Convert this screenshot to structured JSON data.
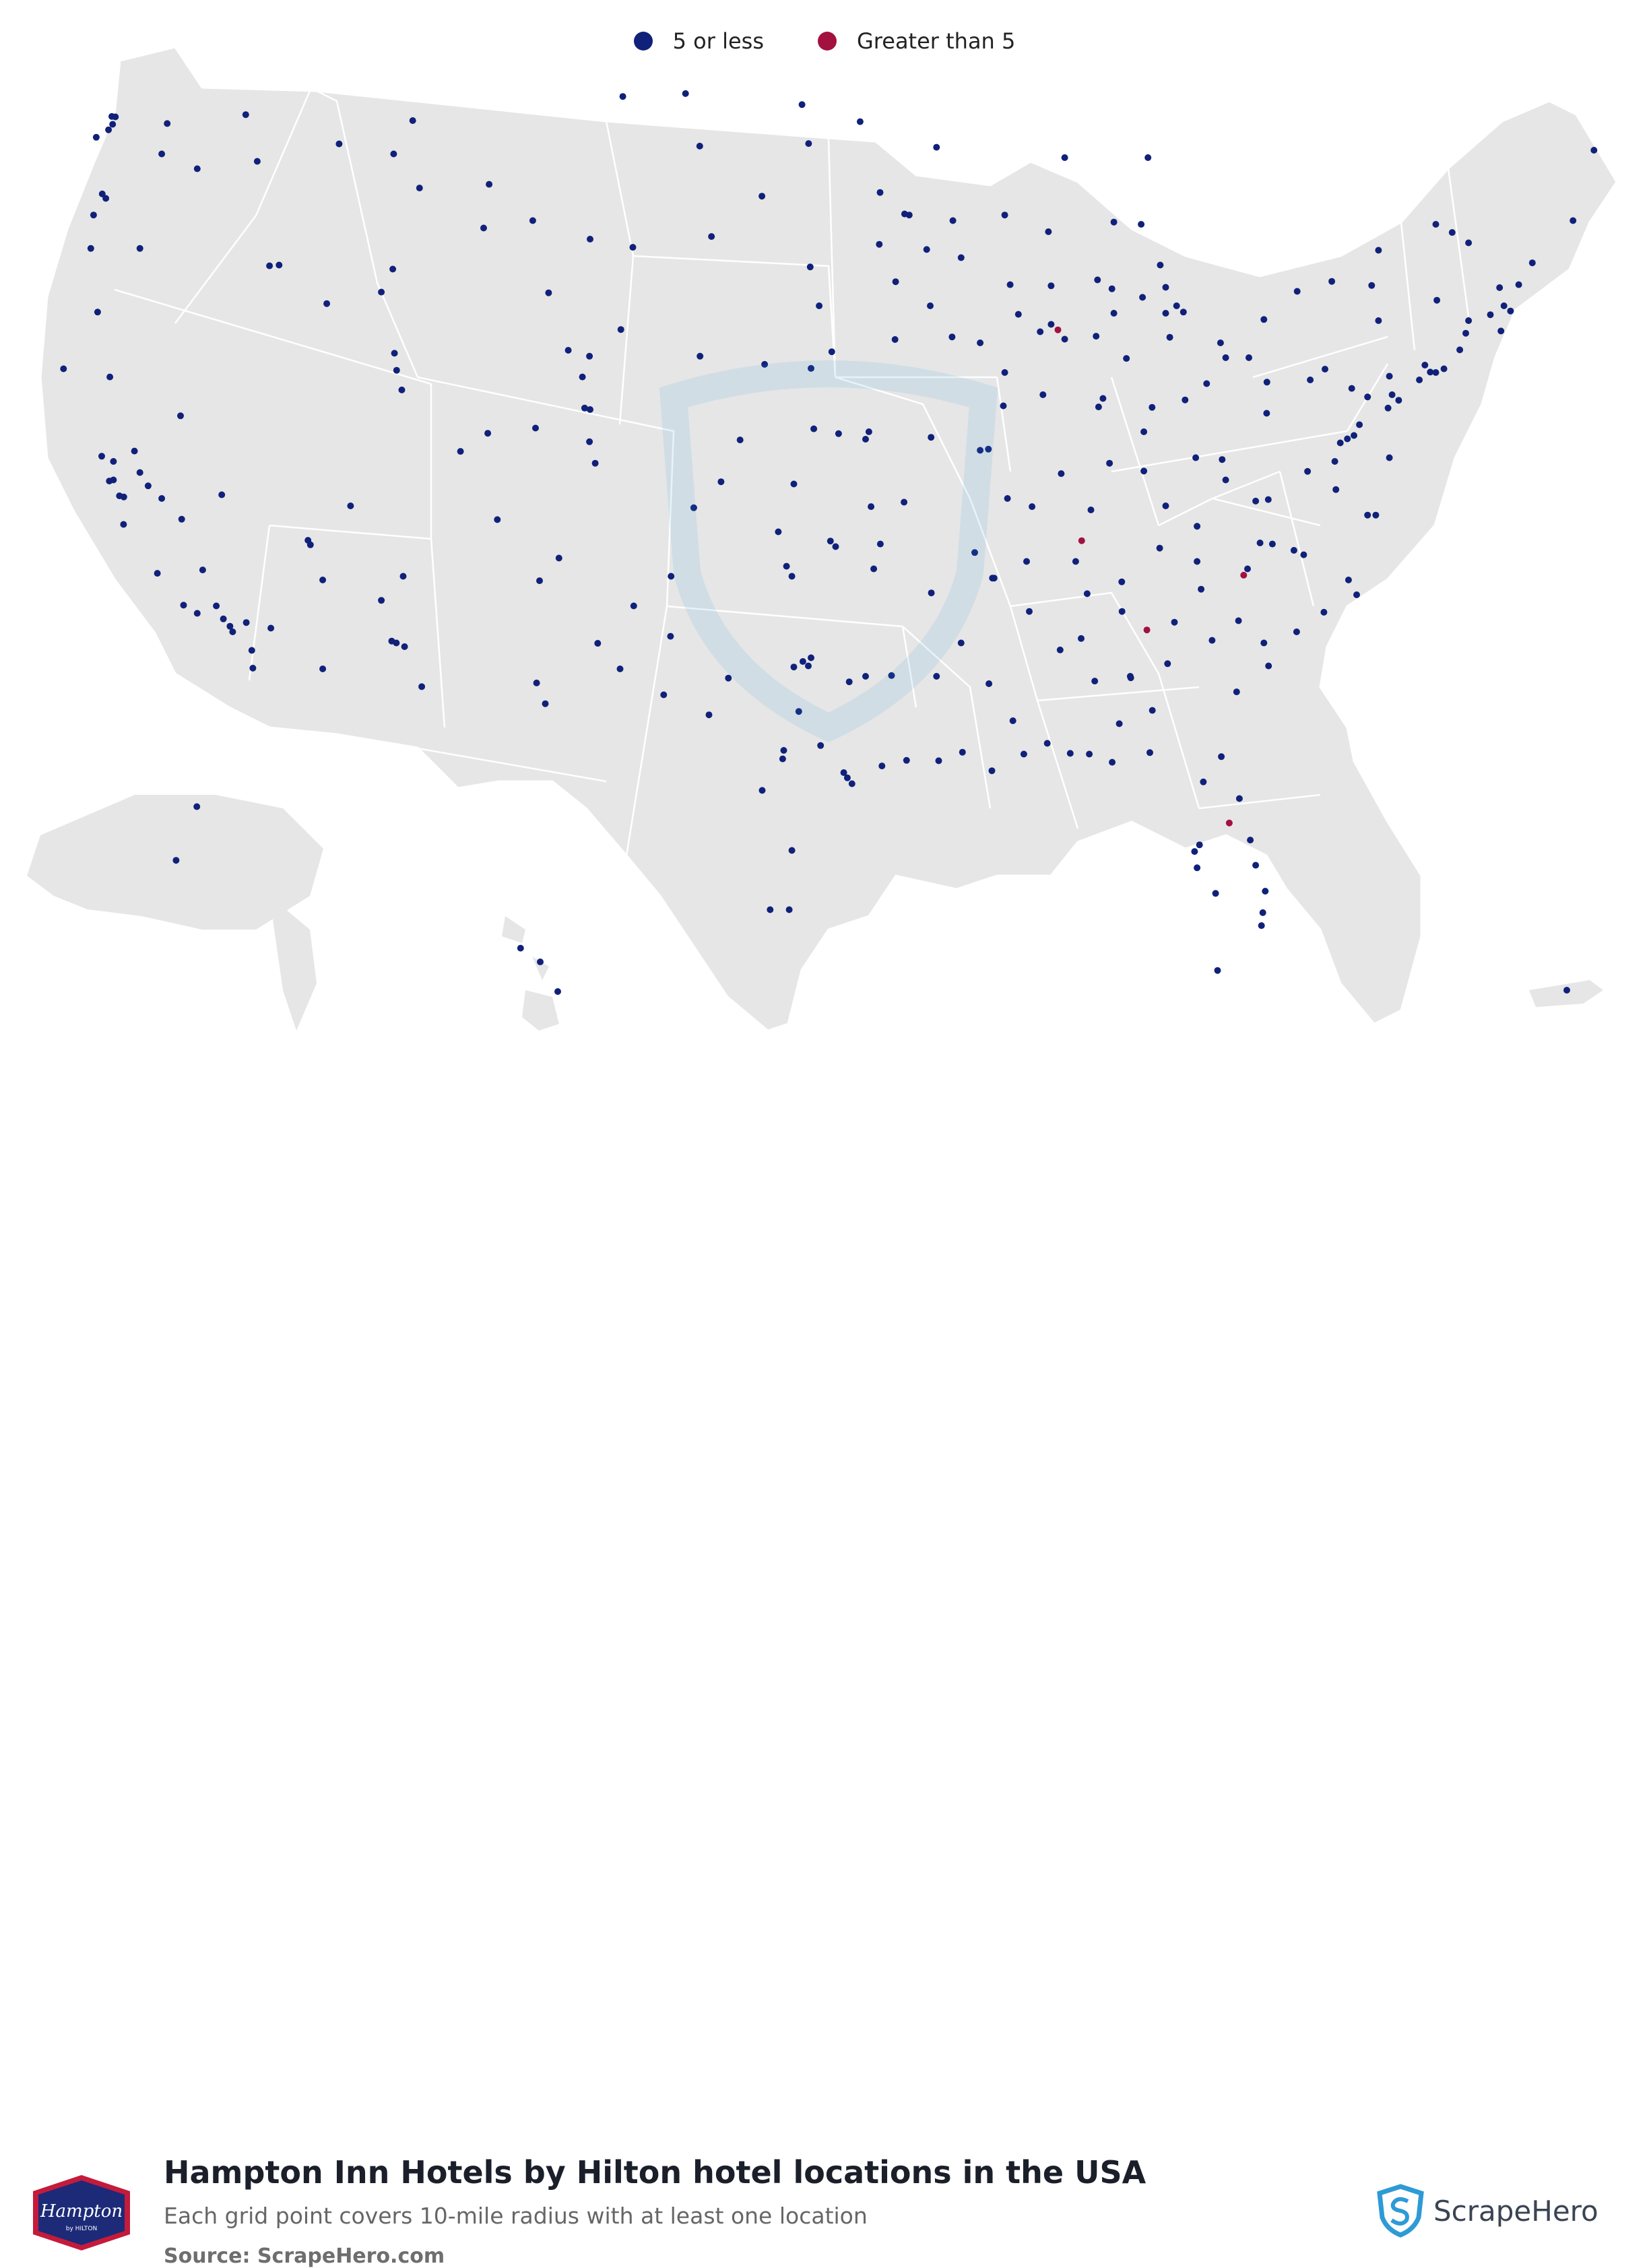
{
  "legend": {
    "items": [
      {
        "label": "5 or less",
        "color": "#10217a"
      },
      {
        "label": "Greater than 5",
        "color": "#a3113f"
      }
    ]
  },
  "title": "Hampton Inn Hotels by Hilton hotel locations in the USA",
  "subtitle": "Each grid point covers 10-mile radius with at least one location",
  "source": "Source: ScrapeHero.com",
  "brand_logo": {
    "text": "Hampton",
    "subtext": "by HILTON",
    "colors": [
      "#1c2a78",
      "#c41b3c"
    ]
  },
  "scrapehero": {
    "text": "ScrapeHero",
    "icon": "scrapehero-shield-icon",
    "color": "#2e9ad6"
  },
  "map": {
    "land_color": "#e6e6e6",
    "border_color": "#ffffff",
    "dot_colors": {
      "low": "#10217a",
      "high": "#a3113f"
    }
  },
  "locations": {
    "high": [
      [
        -87.65,
        41.85
      ],
      [
        -86.78,
        36.16
      ],
      [
        -84.39,
        33.75
      ],
      [
        -80.84,
        35.23
      ],
      [
        -81.37,
        28.54
      ]
    ],
    "low": [
      [
        -122.33,
        47.61
      ],
      [
        -122.2,
        47.6
      ],
      [
        -122.3,
        47.4
      ],
      [
        -122.45,
        47.25
      ],
      [
        -122.9,
        47.05
      ],
      [
        -122.68,
        45.52
      ],
      [
        -122.55,
        45.4
      ],
      [
        -123.0,
        44.95
      ],
      [
        -123.1,
        44.05
      ],
      [
        -122.85,
        42.33
      ],
      [
        -121.3,
        44.05
      ],
      [
        -124.1,
        40.8
      ],
      [
        -122.4,
        40.58
      ],
      [
        -117.42,
        47.66
      ],
      [
        -117.0,
        46.4
      ],
      [
        -119.2,
        46.2
      ],
      [
        -120.5,
        46.6
      ],
      [
        -120.3,
        47.42
      ],
      [
        -116.2,
        43.6
      ],
      [
        -116.55,
        43.58
      ],
      [
        -114.45,
        42.56
      ],
      [
        -112.45,
        42.87
      ],
      [
        -112.03,
        43.49
      ],
      [
        -114.0,
        46.87
      ],
      [
        -111.05,
        45.68
      ],
      [
        -108.5,
        45.78
      ],
      [
        -112.0,
        46.6
      ],
      [
        -111.3,
        47.5
      ],
      [
        -104.82,
        41.14
      ],
      [
        -106.32,
        42.85
      ],
      [
        -105.6,
        41.3
      ],
      [
        -108.7,
        44.6
      ],
      [
        -106.9,
        44.8
      ],
      [
        -104.8,
        44.3
      ],
      [
        -103.23,
        44.08
      ],
      [
        -100.35,
        44.37
      ],
      [
        -96.73,
        43.55
      ],
      [
        -98.5,
        45.46
      ],
      [
        -100.78,
        46.81
      ],
      [
        -96.79,
        46.88
      ],
      [
        -97.03,
        47.93
      ],
      [
        -101.3,
        48.23
      ],
      [
        -103.6,
        48.15
      ],
      [
        -122.27,
        37.8
      ],
      [
        -122.42,
        37.77
      ],
      [
        -121.89,
        37.34
      ],
      [
        -122.05,
        37.37
      ],
      [
        -121.5,
        38.58
      ],
      [
        -121.3,
        38.0
      ],
      [
        -121.0,
        37.64
      ],
      [
        -120.5,
        37.3
      ],
      [
        -119.77,
        36.74
      ],
      [
        -119.0,
        35.37
      ],
      [
        -120.66,
        35.28
      ],
      [
        -121.9,
        36.6
      ],
      [
        -122.7,
        38.44
      ],
      [
        -122.27,
        38.3
      ],
      [
        -118.24,
        34.05
      ],
      [
        -118.0,
        33.85
      ],
      [
        -117.9,
        33.7
      ],
      [
        -117.4,
        33.95
      ],
      [
        -117.16,
        32.72
      ],
      [
        -117.2,
        33.2
      ],
      [
        -116.5,
        33.8
      ],
      [
        -118.5,
        34.4
      ],
      [
        -119.2,
        34.2
      ],
      [
        -119.7,
        34.42
      ],
      [
        -115.14,
        36.17
      ],
      [
        -115.05,
        36.05
      ],
      [
        -119.81,
        39.53
      ],
      [
        -118.3,
        37.4
      ],
      [
        -112.07,
        33.45
      ],
      [
        -111.9,
        33.4
      ],
      [
        -111.6,
        33.3
      ],
      [
        -110.97,
        32.22
      ],
      [
        -111.65,
        35.2
      ],
      [
        -112.45,
        34.55
      ],
      [
        -114.6,
        35.1
      ],
      [
        -114.6,
        32.7
      ],
      [
        -113.58,
        37.1
      ],
      [
        -111.89,
        40.76
      ],
      [
        -111.7,
        40.23
      ],
      [
        -111.97,
        41.22
      ],
      [
        -109.55,
        38.57
      ],
      [
        -105.0,
        39.74
      ],
      [
        -104.8,
        39.7
      ],
      [
        -104.82,
        38.83
      ],
      [
        -105.08,
        40.58
      ],
      [
        -104.61,
        38.25
      ],
      [
        -108.55,
        39.06
      ],
      [
        -106.8,
        39.2
      ],
      [
        -106.65,
        35.08
      ],
      [
        -105.94,
        35.69
      ],
      [
        -106.76,
        32.32
      ],
      [
        -104.52,
        33.39
      ],
      [
        -103.2,
        34.4
      ],
      [
        -108.2,
        36.73
      ],
      [
        -103.7,
        32.7
      ],
      [
        -96.8,
        32.78
      ],
      [
        -97.33,
        32.75
      ],
      [
        -97.0,
        32.9
      ],
      [
        -96.7,
        33.0
      ],
      [
        -95.37,
        29.76
      ],
      [
        -95.5,
        29.9
      ],
      [
        -95.2,
        29.6
      ],
      [
        -98.49,
        29.42
      ],
      [
        -97.74,
        30.27
      ],
      [
        -97.7,
        30.5
      ],
      [
        -97.4,
        27.8
      ],
      [
        -97.5,
        26.2
      ],
      [
        -98.2,
        26.2
      ],
      [
        -101.85,
        33.58
      ],
      [
        -101.83,
        35.2
      ],
      [
        -106.44,
        31.76
      ],
      [
        -102.1,
        32.0
      ],
      [
        -100.44,
        31.46
      ],
      [
        -99.73,
        32.45
      ],
      [
        -94.1,
        30.08
      ],
      [
        -94.7,
        32.5
      ],
      [
        -95.3,
        32.35
      ],
      [
        -97.15,
        31.55
      ],
      [
        -96.35,
        30.63
      ],
      [
        -97.6,
        35.47
      ],
      [
        -97.4,
        35.2
      ],
      [
        -95.99,
        36.15
      ],
      [
        -95.8,
        36.0
      ],
      [
        -97.9,
        36.4
      ],
      [
        -94.58,
        39.1
      ],
      [
        -94.7,
        38.9
      ],
      [
        -97.33,
        37.69
      ],
      [
        -95.69,
        39.05
      ],
      [
        -96.6,
        39.18
      ],
      [
        -99.3,
        38.88
      ],
      [
        -100.0,
        37.75
      ],
      [
        -101.0,
        37.05
      ],
      [
        -95.94,
        41.26
      ],
      [
        -96.7,
        40.81
      ],
      [
        -98.4,
        40.92
      ],
      [
        -100.77,
        41.14
      ],
      [
        -103.67,
        41.86
      ],
      [
        -93.62,
        41.59
      ],
      [
        -91.53,
        41.66
      ],
      [
        -92.33,
        42.5
      ],
      [
        -93.6,
        43.15
      ],
      [
        -96.4,
        42.5
      ],
      [
        -93.27,
        44.98
      ],
      [
        -93.1,
        44.95
      ],
      [
        -92.46,
        44.02
      ],
      [
        -94.2,
        44.16
      ],
      [
        -94.17,
        45.56
      ],
      [
        -92.1,
        46.78
      ],
      [
        -94.9,
        47.47
      ],
      [
        -90.2,
        38.63
      ],
      [
        -90.5,
        38.6
      ],
      [
        -92.3,
        38.95
      ],
      [
        -93.29,
        37.2
      ],
      [
        -94.5,
        37.08
      ],
      [
        -89.5,
        37.3
      ],
      [
        -92.29,
        34.75
      ],
      [
        -94.16,
        36.07
      ],
      [
        -94.4,
        35.4
      ],
      [
        -90.7,
        35.84
      ],
      [
        -91.2,
        33.4
      ],
      [
        -90.05,
        35.15
      ],
      [
        -90.18,
        32.3
      ],
      [
        -88.7,
        34.25
      ],
      [
        -89.3,
        31.3
      ],
      [
        -88.9,
        30.4
      ],
      [
        -91.15,
        30.45
      ],
      [
        -90.07,
        29.95
      ],
      [
        -92.02,
        30.22
      ],
      [
        -93.75,
        32.52
      ],
      [
        -92.1,
        32.5
      ],
      [
        -93.2,
        30.23
      ],
      [
        -88.04,
        30.69
      ],
      [
        -86.8,
        33.52
      ],
      [
        -86.3,
        32.37
      ],
      [
        -86.58,
        34.73
      ],
      [
        -85.4,
        31.22
      ],
      [
        -87.57,
        33.21
      ],
      [
        -85.0,
        32.5
      ],
      [
        -84.28,
        30.44
      ],
      [
        -81.66,
        30.33
      ],
      [
        -82.32,
        29.65
      ],
      [
        -82.46,
        27.95
      ],
      [
        -82.64,
        27.77
      ],
      [
        -82.55,
        27.33
      ],
      [
        -81.87,
        26.64
      ],
      [
        -80.19,
        25.77
      ],
      [
        -80.14,
        26.12
      ],
      [
        -80.05,
        26.7
      ],
      [
        -80.6,
        28.08
      ],
      [
        -81.0,
        29.2
      ],
      [
        -80.4,
        27.4
      ],
      [
        -81.8,
        24.56
      ],
      [
        -87.2,
        30.42
      ],
      [
        -86.5,
        30.4
      ],
      [
        -85.66,
        30.18
      ],
      [
        -84.19,
        31.58
      ],
      [
        -83.63,
        32.84
      ],
      [
        -81.1,
        32.08
      ],
      [
        -82.0,
        33.47
      ],
      [
        -84.98,
        32.46
      ],
      [
        -83.38,
        33.96
      ],
      [
        -85.3,
        34.25
      ],
      [
        -85.31,
        35.05
      ],
      [
        -83.92,
        35.96
      ],
      [
        -82.55,
        36.55
      ],
      [
        -87.0,
        35.6
      ],
      [
        -88.8,
        35.6
      ],
      [
        -89.99,
        35.15
      ],
      [
        -84.5,
        38.04
      ],
      [
        -85.76,
        38.25
      ],
      [
        -86.44,
        36.99
      ],
      [
        -88.6,
        37.08
      ],
      [
        -83.7,
        37.1
      ],
      [
        -82.6,
        38.4
      ],
      [
        -81.63,
        38.35
      ],
      [
        -80.0,
        39.6
      ],
      [
        -81.5,
        37.8
      ],
      [
        -86.16,
        39.77
      ],
      [
        -86.0,
        40.0
      ],
      [
        -87.53,
        37.97
      ],
      [
        -85.14,
        41.08
      ],
      [
        -86.25,
        41.68
      ],
      [
        -87.4,
        41.6
      ],
      [
        -87.9,
        42.0
      ],
      [
        -88.3,
        41.8
      ],
      [
        -89.6,
        40.7
      ],
      [
        -88.2,
        40.1
      ],
      [
        -89.65,
        39.8
      ],
      [
        -90.5,
        41.5
      ],
      [
        -89.1,
        42.27
      ],
      [
        -87.9,
        43.04
      ],
      [
        -89.4,
        43.07
      ],
      [
        -88.0,
        44.5
      ],
      [
        -91.5,
        44.8
      ],
      [
        -89.6,
        44.95
      ],
      [
        -91.2,
        43.8
      ],
      [
        -83.05,
        42.33
      ],
      [
        -83.3,
        42.5
      ],
      [
        -83.7,
        42.3
      ],
      [
        -84.55,
        42.73
      ],
      [
        -85.67,
        42.96
      ],
      [
        -86.2,
        43.2
      ],
      [
        -83.7,
        43.0
      ],
      [
        -83.9,
        43.6
      ],
      [
        -84.6,
        44.7
      ],
      [
        -85.6,
        44.76
      ],
      [
        -84.35,
        46.5
      ],
      [
        -87.4,
        46.5
      ],
      [
        -85.6,
        42.3
      ],
      [
        -81.69,
        41.5
      ],
      [
        -81.5,
        41.1
      ],
      [
        -82.99,
        39.96
      ],
      [
        -84.5,
        39.1
      ],
      [
        -84.2,
        39.76
      ],
      [
        -83.55,
        41.65
      ],
      [
        -80.65,
        41.1
      ],
      [
        -82.2,
        40.4
      ],
      [
        -79.99,
        40.44
      ],
      [
        -80.1,
        42.13
      ],
      [
        -78.88,
        42.89
      ],
      [
        -77.61,
        43.16
      ],
      [
        -76.15,
        43.05
      ],
      [
        -73.76,
        42.65
      ],
      [
        -75.9,
        42.1
      ],
      [
        -74.0,
        40.71
      ],
      [
        -73.8,
        40.7
      ],
      [
        -73.5,
        40.8
      ],
      [
        -74.4,
        40.5
      ],
      [
        -74.2,
        40.9
      ],
      [
        -75.16,
        39.95
      ],
      [
        -75.4,
        40.1
      ],
      [
        -75.5,
        40.6
      ],
      [
        -76.88,
        40.27
      ],
      [
        -76.3,
        40.04
      ],
      [
        -77.86,
        40.79
      ],
      [
        -78.4,
        40.5
      ],
      [
        -76.6,
        39.29
      ],
      [
        -76.8,
        39.0
      ],
      [
        -77.04,
        38.91
      ],
      [
        -77.3,
        38.8
      ],
      [
        -77.46,
        37.54
      ],
      [
        -76.3,
        36.85
      ],
      [
        -76.0,
        36.85
      ],
      [
        -79.94,
        37.27
      ],
      [
        -78.5,
        38.03
      ],
      [
        -77.5,
        38.3
      ],
      [
        -80.4,
        37.23
      ],
      [
        -75.55,
        39.74
      ],
      [
        -75.5,
        38.4
      ],
      [
        -72.92,
        41.31
      ],
      [
        -72.7,
        41.76
      ],
      [
        -71.41,
        41.82
      ],
      [
        -71.06,
        42.36
      ],
      [
        -71.3,
        42.5
      ],
      [
        -71.8,
        42.26
      ],
      [
        -72.6,
        42.1
      ],
      [
        -71.46,
        42.99
      ],
      [
        -70.76,
        43.07
      ],
      [
        -70.26,
        43.66
      ],
      [
        -68.77,
        44.8
      ],
      [
        -73.2,
        44.48
      ],
      [
        -72.6,
        44.2
      ],
      [
        -73.8,
        44.7
      ],
      [
        -75.9,
        44.0
      ],
      [
        -68.0,
        46.7
      ],
      [
        -78.64,
        35.78
      ],
      [
        -79.0,
        35.9
      ],
      [
        -79.79,
        36.07
      ],
      [
        -80.24,
        36.1
      ],
      [
        -80.7,
        35.4
      ],
      [
        -82.55,
        35.6
      ],
      [
        -77.9,
        34.23
      ],
      [
        -77.0,
        35.1
      ],
      [
        -76.7,
        34.7
      ],
      [
        -81.03,
        34.0
      ],
      [
        -82.4,
        34.85
      ],
      [
        -79.93,
        32.78
      ],
      [
        -78.9,
        33.7
      ],
      [
        -80.1,
        33.4
      ],
      [
        -149.9,
        61.22
      ],
      [
        -147.7,
        64.84
      ],
      [
        -157.86,
        21.31
      ],
      [
        -156.4,
        20.8
      ],
      [
        -155.1,
        19.7
      ],
      [
        -66.1,
        18.46
      ]
    ]
  }
}
